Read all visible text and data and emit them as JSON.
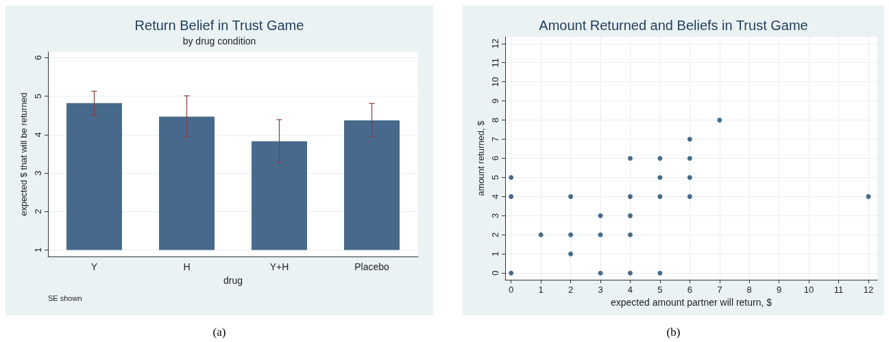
{
  "chart_data": [
    {
      "type": "bar",
      "title": "Return Belief in Trust Game",
      "subtitle": "by drug condition",
      "xlabel": "drug",
      "ylabel": "expected $ that will be returned",
      "categories": [
        "Y",
        "H",
        "Y+H",
        "Placebo"
      ],
      "base": [
        1,
        1,
        1,
        1
      ],
      "values": [
        3.82,
        3.47,
        2.83,
        3.37
      ],
      "errors": [
        [
          4.5,
          5.13
        ],
        [
          3.95,
          5.01
        ],
        [
          3.27,
          4.39
        ],
        [
          3.95,
          4.81
        ]
      ],
      "color": "#476a8c",
      "ylim": [
        0.83,
        6.15
      ],
      "yticks": [
        1,
        2,
        3,
        4,
        5,
        6
      ],
      "grid": "y",
      "annotations": [
        "SE shown",
        "(a)"
      ]
    },
    {
      "type": "scatter",
      "title": "Amount Returned and Beliefs in Trust Game",
      "xlabel": "expected amount partner will return, $",
      "ylabel": "amount returned, $",
      "x": [
        0,
        0,
        0,
        1,
        2,
        2,
        2,
        3,
        3,
        3,
        4,
        4,
        4,
        4,
        4,
        5,
        5,
        5,
        5,
        6,
        6,
        6,
        6,
        7,
        12
      ],
      "values": [
        0,
        4,
        5,
        2,
        1,
        2,
        4,
        0,
        2,
        3,
        0,
        2,
        3,
        4,
        6,
        0,
        4,
        5,
        6,
        4,
        5,
        6,
        7,
        8,
        4
      ],
      "color": "#1a476f",
      "marker": "circle",
      "xlim": [
        -0.2,
        12.3
      ],
      "xticks": [
        0,
        1,
        2,
        3,
        4,
        5,
        6,
        7,
        8,
        9,
        10,
        11,
        12
      ],
      "ylim": [
        -0.35,
        12.35
      ],
      "yticks": [
        0,
        1,
        2,
        3,
        4,
        5,
        6,
        7,
        8,
        9,
        10,
        11,
        12
      ],
      "grid": true,
      "annotations": [
        "(b)"
      ]
    }
  ]
}
